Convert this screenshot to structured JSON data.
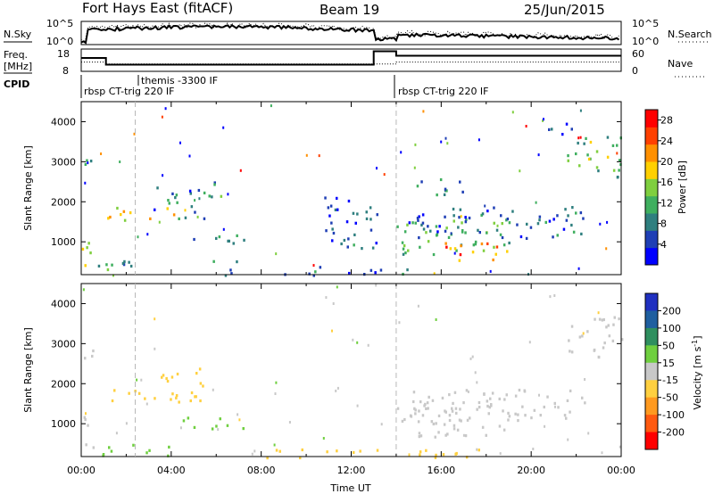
{
  "header": {
    "station": "Fort Hays East (fitACF)",
    "beam": "Beam 19",
    "date": "25/Jun/2015"
  },
  "status_panels": {
    "nsky_label": "N.Sky",
    "nsearch_label": "N.Search",
    "freq_label": "Freq.",
    "freq_unit": "[MHz]",
    "nave_label": "Nave",
    "cpid_label": "CPID",
    "left_ticks_top": [
      "10^5",
      "10^0"
    ],
    "right_ticks_top": [
      "10^5",
      "10^0"
    ],
    "left_ticks_freq": [
      "18",
      "8"
    ],
    "right_ticks_nave": [
      "60",
      "0"
    ],
    "cpid_segments": [
      {
        "label": "rbsp CT-trig 220 IF",
        "start_hour": 0.0
      },
      {
        "label": "themis -3300 IF",
        "start_hour": 2.4
      },
      {
        "label": "rbsp CT-trig 220 IF",
        "start_hour": 14.0
      }
    ],
    "freq_trace": [
      [
        0,
        14
      ],
      [
        1.1,
        14
      ],
      [
        1.1,
        11
      ],
      [
        13.0,
        11
      ],
      [
        13.0,
        17
      ],
      [
        14.0,
        17
      ],
      [
        14.0,
        15
      ],
      [
        24,
        15
      ]
    ],
    "nave_trace": [
      [
        0,
        25
      ],
      [
        1.1,
        25
      ],
      [
        1.1,
        20
      ],
      [
        14.0,
        20
      ],
      [
        14.0,
        25
      ],
      [
        24,
        25
      ]
    ]
  },
  "chart_data": [
    {
      "type": "heatmap",
      "name": "power",
      "ylabel": "Slant Range [km]",
      "xlim": [
        0,
        24
      ],
      "ylim": [
        180,
        4500
      ],
      "yticks": [
        1000,
        2000,
        3000,
        4000
      ],
      "colorbar": {
        "label": "Power [dB]",
        "ticks": [
          4,
          8,
          12,
          16,
          20,
          24,
          28
        ],
        "range": [
          0,
          30
        ],
        "colors": [
          "#0000ff",
          "#1f3fb5",
          "#2f7f7f",
          "#3faf5f",
          "#7fcf3f",
          "#ffd000",
          "#ff9000",
          "#ff4000",
          "#ff0000"
        ]
      },
      "regions": [
        {
          "x": [
            0.0,
            0.6
          ],
          "y": [
            200,
            1200
          ],
          "v": 14
        },
        {
          "x": [
            0.1,
            0.5
          ],
          "y": [
            2500,
            3200
          ],
          "v": 12
        },
        {
          "x": [
            1.0,
            4.3
          ],
          "y": [
            1550,
            1900
          ],
          "v": 20
        },
        {
          "x": [
            0.5,
            2.2
          ],
          "y": [
            300,
            900
          ],
          "v": 10
        },
        {
          "x": [
            3.2,
            5.5
          ],
          "y": [
            1600,
            2400
          ],
          "v": 8
        },
        {
          "x": [
            5.5,
            6.5
          ],
          "y": [
            2100,
            2600
          ],
          "v": 9
        },
        {
          "x": [
            4.5,
            7.3
          ],
          "y": [
            900,
            1200
          ],
          "v": 7
        },
        {
          "x": [
            5.8,
            7.0
          ],
          "y": [
            180,
            600
          ],
          "v": 8
        },
        {
          "x": [
            14.0,
            19.0
          ],
          "y": [
            700,
            1700
          ],
          "v": 12
        },
        {
          "x": [
            16.0,
            18.8
          ],
          "y": [
            500,
            1000
          ],
          "v": 22
        },
        {
          "x": [
            14.5,
            22.5
          ],
          "y": [
            1100,
            1900
          ],
          "v": 6
        },
        {
          "x": [
            14.8,
            17.0
          ],
          "y": [
            2100,
            2600
          ],
          "v": 7
        },
        {
          "x": [
            21.5,
            24.0
          ],
          "y": [
            2600,
            3700
          ],
          "v": 14
        },
        {
          "x": [
            20.5,
            22.0
          ],
          "y": [
            3700,
            4100
          ],
          "v": 6
        },
        {
          "x": [
            10.8,
            13.3
          ],
          "y": [
            800,
            2200
          ],
          "v": 6
        },
        {
          "x": [
            9.0,
            15.0
          ],
          "y": [
            180,
            400
          ],
          "v": 8
        }
      ],
      "dashed_lines_hours": [
        2.4,
        14.0
      ]
    },
    {
      "type": "heatmap",
      "name": "velocity",
      "ylabel": "Slant Range [km]",
      "xlabel": "Time UT",
      "xlim": [
        0,
        24
      ],
      "ylim": [
        180,
        4500
      ],
      "yticks": [
        1000,
        2000,
        3000,
        4000
      ],
      "xticks": [
        "00:00",
        "04:00",
        "08:00",
        "12:00",
        "16:00",
        "20:00",
        "00:00"
      ],
      "colorbar": {
        "label": "Velocity [m s^-1]",
        "ticks": [
          200,
          100,
          50,
          15,
          -15,
          -50,
          -100,
          -200
        ],
        "bands": [
          "#2030c0",
          "#1f5fa0",
          "#2f8f5f",
          "#6fcf3f",
          "#c8c8c8",
          "#ffd040",
          "#ff9a20",
          "#ff5a10",
          "#ff0000"
        ]
      },
      "regions": [
        {
          "x": [
            0.0,
            0.6
          ],
          "y": [
            200,
            1200
          ],
          "v": 0
        },
        {
          "x": [
            0.1,
            0.5
          ],
          "y": [
            2500,
            3200
          ],
          "v": 0
        },
        {
          "x": [
            1.0,
            4.3
          ],
          "y": [
            1550,
            1900
          ],
          "v": -20
        },
        {
          "x": [
            0.5,
            4.0
          ],
          "y": [
            200,
            500
          ],
          "v": 30
        },
        {
          "x": [
            3.2,
            5.5
          ],
          "y": [
            1600,
            2400
          ],
          "v": -30
        },
        {
          "x": [
            4.5,
            7.3
          ],
          "y": [
            900,
            1200
          ],
          "v": 40
        },
        {
          "x": [
            14.0,
            19.0
          ],
          "y": [
            700,
            1700
          ],
          "v": 0
        },
        {
          "x": [
            14.5,
            22.5
          ],
          "y": [
            1100,
            1900
          ],
          "v": 0
        },
        {
          "x": [
            21.5,
            24.0
          ],
          "y": [
            2600,
            3700
          ],
          "v": 0
        },
        {
          "x": [
            8.0,
            18.0
          ],
          "y": [
            180,
            400
          ],
          "v": -25
        }
      ],
      "dashed_lines_hours": [
        2.4,
        14.0
      ]
    }
  ]
}
